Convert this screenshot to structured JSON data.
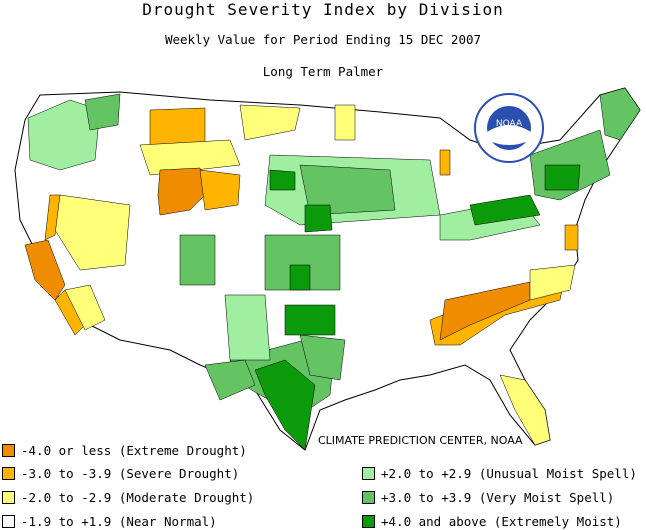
{
  "title": "Drought Severity Index by Division",
  "subtitle": "Weekly Value for Period Ending 15 DEC 2007",
  "index_name": "Long Term Palmer",
  "logo_text": "NOAA",
  "credit": "CLIMATE PREDICTION CENTER, NOAA",
  "colors": {
    "extreme_drought": "#f08c00",
    "severe_drought": "#ffb400",
    "moderate_drought": "#ffff7a",
    "near_normal": "#ffffff",
    "unusual_moist": "#a0eea0",
    "very_moist": "#64c464",
    "extremely_moist": "#0a9a0a"
  },
  "legend": {
    "left": [
      {
        "label": "-4.0 or less (Extreme Drought)",
        "color": "#f08c00"
      },
      {
        "label": "-3.0 to -3.9 (Severe Drought)",
        "color": "#ffb400"
      },
      {
        "label": "-2.0 to -2.9 (Moderate Drought)",
        "color": "#ffff7a"
      },
      {
        "label": "-1.9 to +1.9 (Near Normal)",
        "color": "#ffffff"
      }
    ],
    "right": [
      {
        "label": "+2.0 to +2.9 (Unusual Moist Spell)",
        "color": "#a0eea0"
      },
      {
        "label": "+3.0 to +3.9 (Very Moist Spell)",
        "color": "#64c464"
      },
      {
        "label": "+4.0 and above (Extremely Moist)",
        "color": "#0a9a0a"
      }
    ]
  }
}
